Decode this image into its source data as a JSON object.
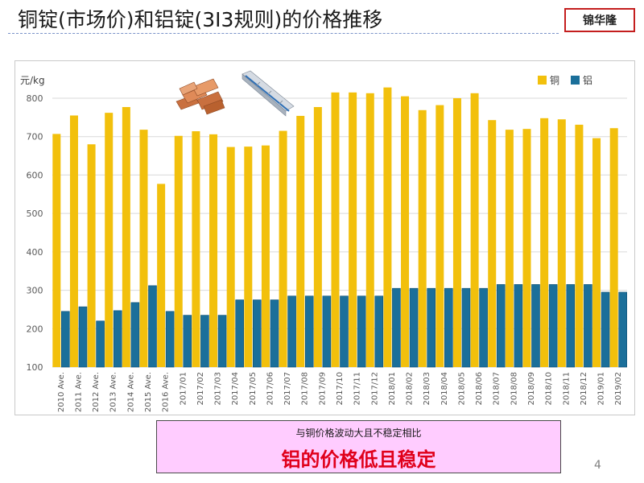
{
  "slide": {
    "title": "铜锭(市场价)和铝锭(3I3规则)的价格推移",
    "brand": "锦华隆",
    "callout_line1": "与铜价格波动大且不稳定相比",
    "callout_line2": "铝的价格低且稳定",
    "page_number": "4"
  },
  "colors": {
    "copper": "#f2c00c",
    "aluminum": "#1b6f9a",
    "grid": "#d9d9d9",
    "axis_text": "#595959"
  },
  "chart_data": {
    "type": "bar",
    "ylabel": "元/kg",
    "ylim": [
      100,
      850
    ],
    "yticks": [
      100,
      200,
      300,
      400,
      500,
      600,
      700,
      800
    ],
    "grid": true,
    "legend_position": "top-right",
    "categories": [
      "2010 Ave.",
      "2011 Ave.",
      "2012 Ave.",
      "2013 Ave.",
      "2014 Ave.",
      "2015 Ave.",
      "2016 Ave.",
      "2017/01",
      "2017/02",
      "2017/03",
      "2017/04",
      "2017/05",
      "2017/06",
      "2017/07",
      "2017/08",
      "2017/09",
      "2017/10",
      "2017/11",
      "2017/12",
      "2018/01",
      "2018/02",
      "2018/03",
      "2018/04",
      "2018/05",
      "2018/06",
      "2018/07",
      "2018/08",
      "2018/09",
      "2018/10",
      "2018/11",
      "2018/12",
      "2019/01",
      "2019/02"
    ],
    "series": [
      {
        "name": "铜",
        "values": [
          707,
          755,
          680,
          762,
          777,
          718,
          577,
          702,
          714,
          706,
          673,
          674,
          677,
          715,
          754,
          777,
          815,
          815,
          813,
          828,
          805,
          769,
          782,
          800,
          813,
          743,
          718,
          720,
          748,
          745,
          731,
          696,
          722
        ]
      },
      {
        "name": "铝",
        "values": [
          245,
          257,
          220,
          247,
          268,
          312,
          245,
          235,
          235,
          235,
          275,
          275,
          275,
          285,
          285,
          285,
          285,
          285,
          285,
          305,
          305,
          305,
          305,
          305,
          305,
          315,
          315,
          315,
          315,
          315,
          315,
          295,
          295
        ]
      }
    ]
  }
}
